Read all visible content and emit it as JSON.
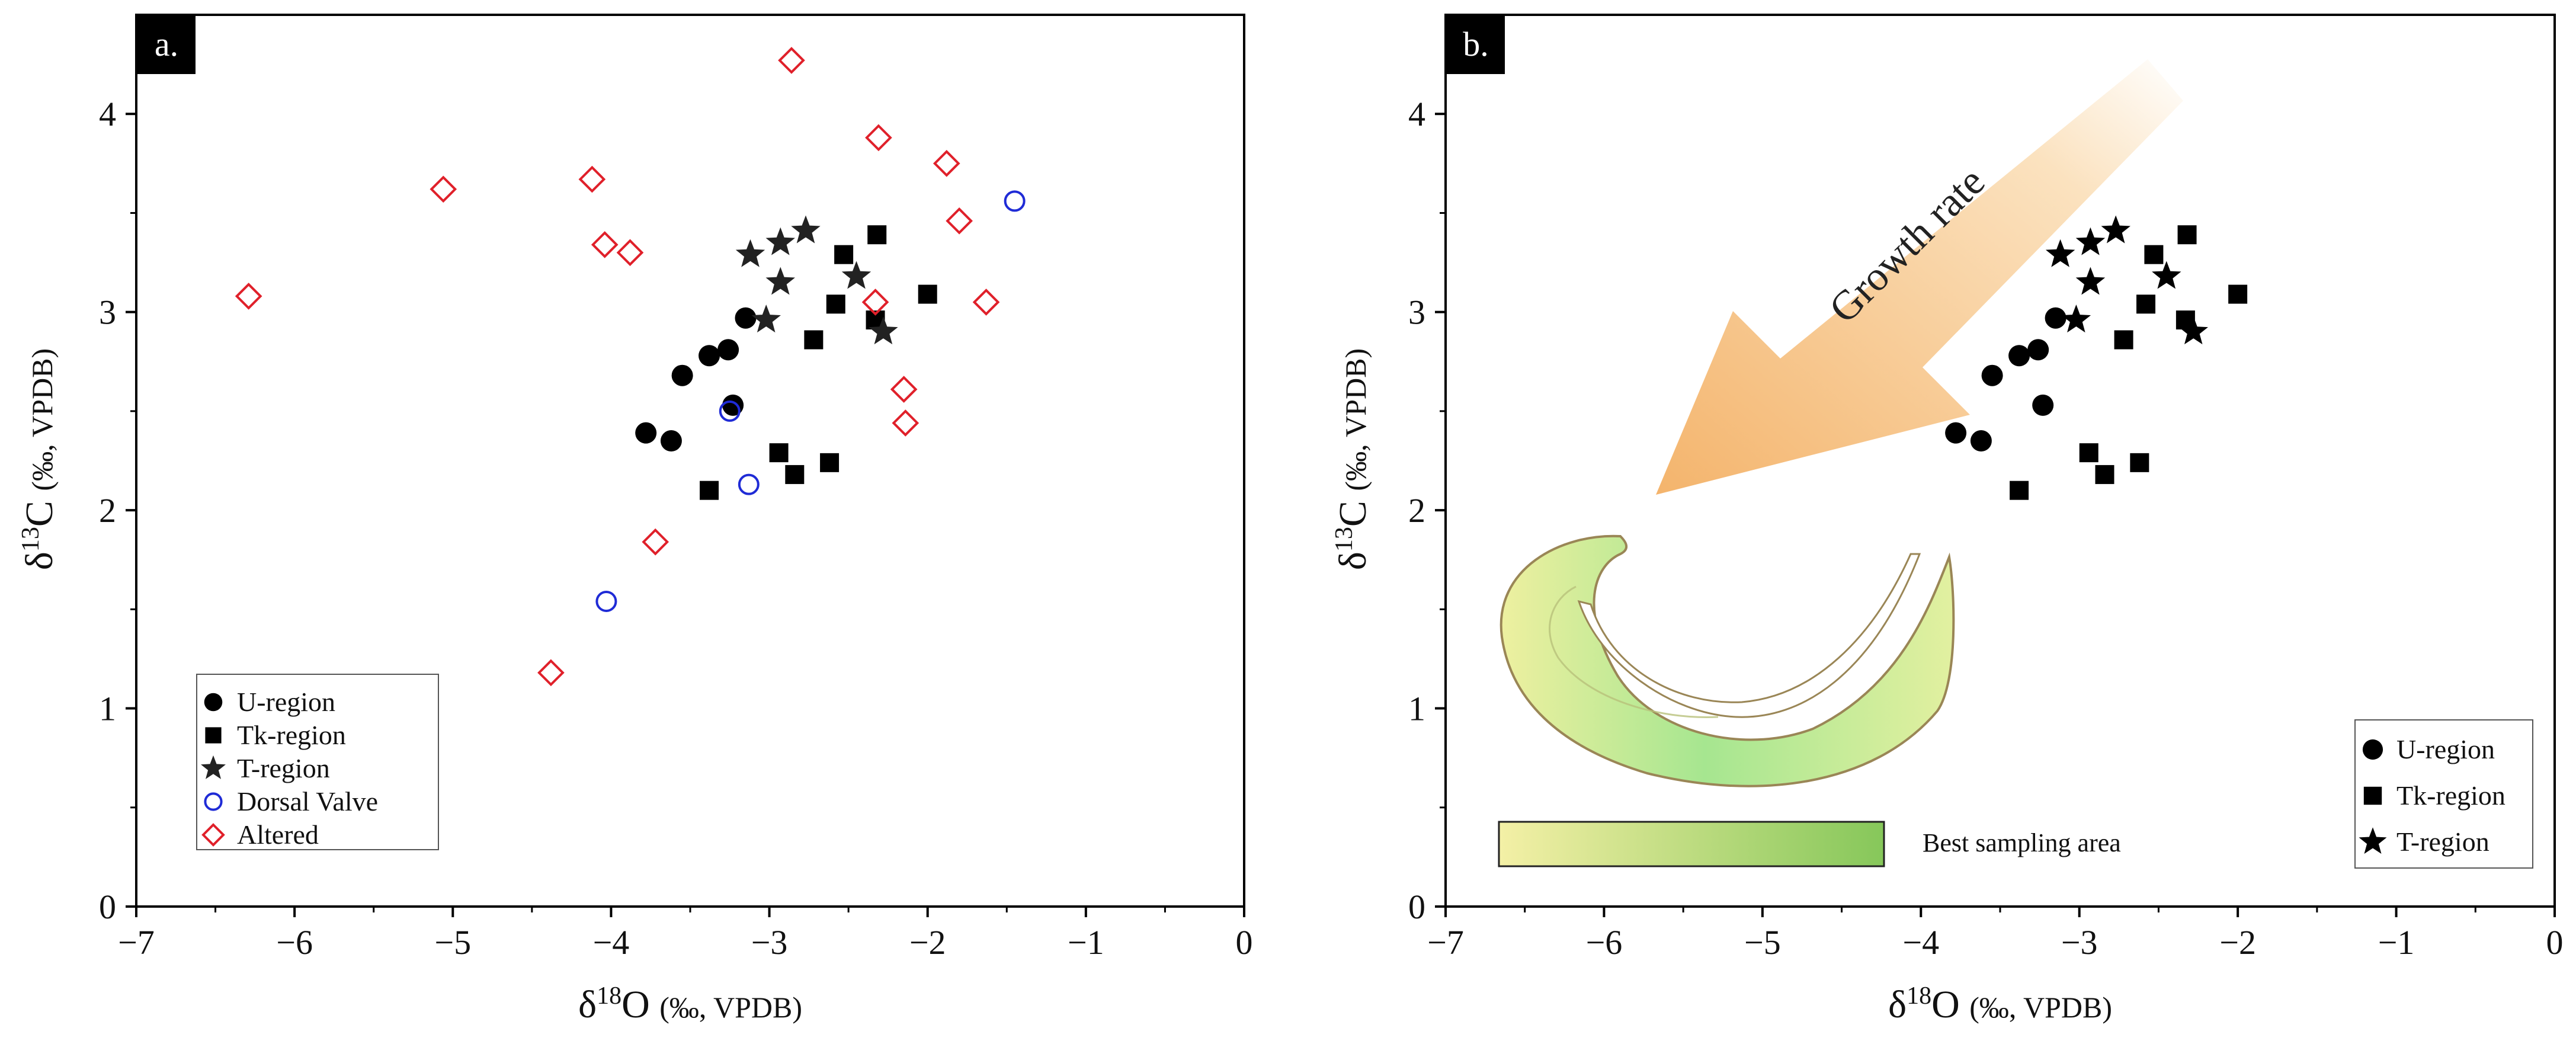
{
  "chart_data": [
    {
      "type": "scatter",
      "panel_label": "a.",
      "xlabel": "δ18O (‰, VPDB)",
      "ylabel": "δ13C (‰, VPDB)",
      "xlim": [
        -7,
        0
      ],
      "ylim": [
        0,
        4.5
      ],
      "xticks": [
        -7,
        -6,
        -5,
        -4,
        -3,
        -2,
        -1,
        0
      ],
      "yticks": [
        0,
        1,
        2,
        3,
        4
      ],
      "grid": false,
      "legend_position": "bottom-left",
      "series": [
        {
          "name": "U-region",
          "marker": "filled-circle",
          "color": "#000000",
          "points": [
            [
              -3.78,
              2.39
            ],
            [
              -3.62,
              2.35
            ],
            [
              -3.55,
              2.68
            ],
            [
              -3.38,
              2.78
            ],
            [
              -3.26,
              2.81
            ],
            [
              -3.15,
              2.97
            ],
            [
              -3.23,
              2.53
            ]
          ]
        },
        {
          "name": "Tk-region",
          "marker": "filled-square",
          "color": "#000000",
          "points": [
            [
              -3.38,
              2.1
            ],
            [
              -2.94,
              2.29
            ],
            [
              -2.84,
              2.18
            ],
            [
              -2.62,
              2.24
            ],
            [
              -2.72,
              2.86
            ],
            [
              -2.58,
              3.04
            ],
            [
              -2.53,
              3.29
            ],
            [
              -2.32,
              3.39
            ],
            [
              -2.33,
              2.96
            ],
            [
              -2.0,
              3.09
            ]
          ]
        },
        {
          "name": "T-region",
          "marker": "star",
          "color": "#222222",
          "points": [
            [
              -3.12,
              3.29
            ],
            [
              -2.93,
              3.35
            ],
            [
              -2.77,
              3.41
            ],
            [
              -2.93,
              3.15
            ],
            [
              -3.02,
              2.96
            ],
            [
              -2.45,
              3.18
            ],
            [
              -2.28,
              2.9
            ]
          ]
        },
        {
          "name": "Dorsal Valve",
          "marker": "open-circle",
          "color": "#1f2bd6",
          "points": [
            [
              -1.45,
              3.56
            ],
            [
              -3.25,
              2.5
            ],
            [
              -3.13,
              2.13
            ],
            [
              -4.03,
              1.54
            ]
          ]
        },
        {
          "name": "Altered",
          "marker": "open-diamond",
          "color": "#e0202a",
          "points": [
            [
              -6.29,
              3.08
            ],
            [
              -5.06,
              3.62
            ],
            [
              -4.12,
              3.67
            ],
            [
              -4.04,
              3.34
            ],
            [
              -3.88,
              3.3
            ],
            [
              -2.86,
              4.27
            ],
            [
              -2.31,
              3.88
            ],
            [
              -1.88,
              3.75
            ],
            [
              -1.8,
              3.46
            ],
            [
              -2.33,
              3.05
            ],
            [
              -1.63,
              3.05
            ],
            [
              -2.15,
              2.61
            ],
            [
              -2.14,
              2.44
            ],
            [
              -3.72,
              1.84
            ],
            [
              -4.38,
              1.18
            ]
          ]
        }
      ]
    },
    {
      "type": "scatter",
      "panel_label": "b.",
      "xlabel": "δ18O (‰, VPDB)",
      "ylabel": "δ13C (‰, VPDB)",
      "xlim": [
        -7,
        0
      ],
      "ylim": [
        0,
        4.5
      ],
      "xticks": [
        -7,
        -6,
        -5,
        -4,
        -3,
        -2,
        -1,
        0
      ],
      "yticks": [
        0,
        1,
        2,
        3,
        4
      ],
      "grid": false,
      "legend_position": "bottom-right",
      "annotations": {
        "arrow_text": "Growth rate",
        "gradient_bar_label": "Best sampling area"
      },
      "colors": {
        "arrow_start": "#fbe2bf",
        "arrow_end": "#f4b46c",
        "gradient_start": "#f4f0a6",
        "gradient_end": "#86c75a",
        "shell_fill": "#eaf0a2",
        "shell_green": "#9fe38c",
        "shell_outline": "#9a8656"
      },
      "series": [
        {
          "name": "U-region",
          "marker": "filled-circle",
          "color": "#000000",
          "points": [
            [
              -3.78,
              2.39
            ],
            [
              -3.62,
              2.35
            ],
            [
              -3.55,
              2.68
            ],
            [
              -3.38,
              2.78
            ],
            [
              -3.26,
              2.81
            ],
            [
              -3.15,
              2.97
            ],
            [
              -3.23,
              2.53
            ]
          ]
        },
        {
          "name": "Tk-region",
          "marker": "filled-square",
          "color": "#000000",
          "points": [
            [
              -3.38,
              2.1
            ],
            [
              -2.94,
              2.29
            ],
            [
              -2.84,
              2.18
            ],
            [
              -2.62,
              2.24
            ],
            [
              -2.72,
              2.86
            ],
            [
              -2.58,
              3.04
            ],
            [
              -2.53,
              3.29
            ],
            [
              -2.32,
              3.39
            ],
            [
              -2.33,
              2.96
            ],
            [
              -2.0,
              3.09
            ]
          ]
        },
        {
          "name": "T-region",
          "marker": "star",
          "color": "#000000",
          "points": [
            [
              -3.12,
              3.29
            ],
            [
              -2.93,
              3.35
            ],
            [
              -2.77,
              3.41
            ],
            [
              -2.93,
              3.15
            ],
            [
              -3.02,
              2.96
            ],
            [
              -2.45,
              3.18
            ],
            [
              -2.28,
              2.9
            ]
          ]
        }
      ]
    }
  ]
}
